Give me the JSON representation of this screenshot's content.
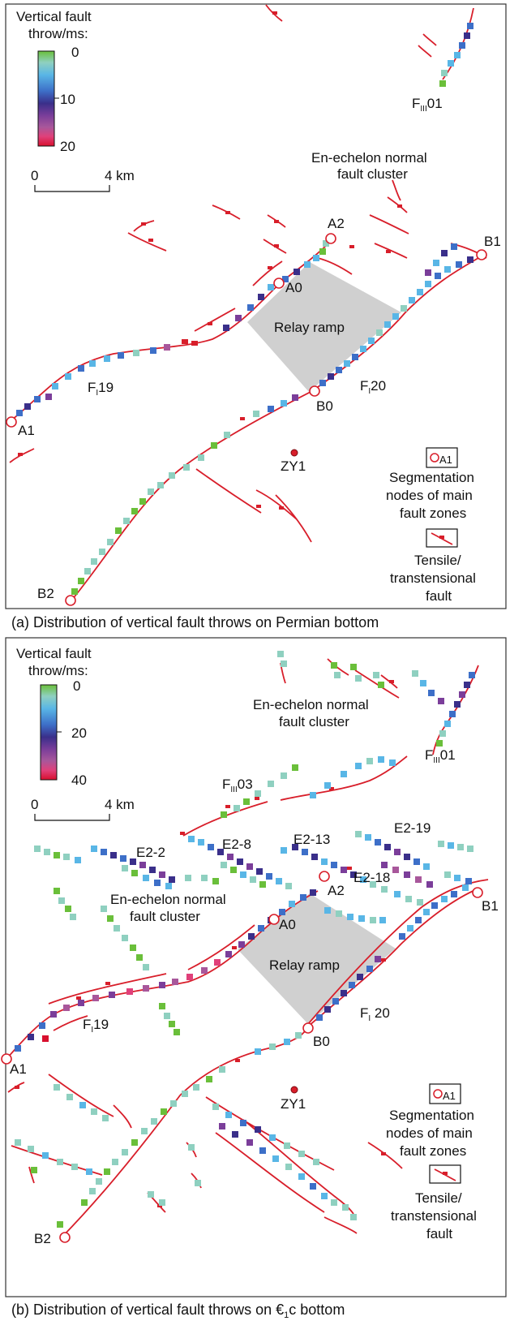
{
  "colors": {
    "fault": "#d81e2a",
    "ramp": "#d0d0d0",
    "stops": [
      "#6abf3a",
      "#8fd0c0",
      "#59b6e6",
      "#3d6fc8",
      "#3a2f8a",
      "#7b3e9a",
      "#a8579b",
      "#e0407a",
      "#d8102e"
    ]
  },
  "panel_a": {
    "caption": "(a) Distribution of vertical fault throws on Permian bottom",
    "legend": {
      "title1": "Vertical fault",
      "title2": "throw/ms:",
      "ticks": [
        "0",
        "10",
        "20"
      ],
      "scale_left": "0",
      "scale_right": "4 km"
    },
    "labels": {
      "f3": "F",
      "f3_sub": "III",
      "f3_num": "01",
      "enechelon1": "En-echelon normal",
      "enechelon2": "fault cluster",
      "a2": "A2",
      "b1": "B1",
      "a0": "A0",
      "relay": "Relay ramp",
      "f19": "F",
      "f19_sub": "I",
      "f19_num": "19",
      "f20": "F",
      "f20_sub": "I",
      "f20_num": "20",
      "a1": "A1",
      "b0": "B0",
      "zy1": "ZY1",
      "b2": "B2"
    },
    "key": {
      "node_tag": "A1",
      "node1": "Segmentation",
      "node2": "nodes of main",
      "node3": "fault zones",
      "ten1": "Tensile/",
      "ten2": "transtensional",
      "ten3": "fault"
    }
  },
  "panel_b": {
    "caption": "(b) Distribution of vertical fault throws on ",
    "caption_epoch": "€",
    "caption_sub": "1",
    "caption_end": "c bottom",
    "legend": {
      "title1": "Vertical fault",
      "title2": "throw/ms:",
      "ticks": [
        "0",
        "20",
        "40"
      ],
      "scale_left": "0",
      "scale_right": "4 km"
    },
    "labels": {
      "enechelon_top1": "En-echelon normal",
      "enechelon_top2": "fault cluster",
      "f301": "F",
      "f301_sub": "III",
      "f301_num": "01",
      "f303": "F",
      "f303_sub": "III",
      "f303_num": "03",
      "e22": "E2-2",
      "e28": "E2-8",
      "e213": "E2-13",
      "e219": "E2-19",
      "e218": "E2-18",
      "a2": "A2",
      "b1": "B1",
      "a0": "A0",
      "enechelon_mid1": "En-echelon normal",
      "enechelon_mid2": "fault cluster",
      "relay": "Relay ramp",
      "f19": "F",
      "f19_sub": "I",
      "f19_num": "19",
      "f20": "F",
      "f20_sub": "I",
      "f20_num": " 20",
      "a1": "A1",
      "b0": "B0",
      "zy1": "ZY1",
      "b2": "B2"
    },
    "key": {
      "node_tag": "A1",
      "node1": "Segmentation",
      "node2": "nodes of main",
      "node3": "fault zones",
      "ten1": "Tensile/",
      "ten2": "transtensional",
      "ten3": "fault"
    }
  }
}
